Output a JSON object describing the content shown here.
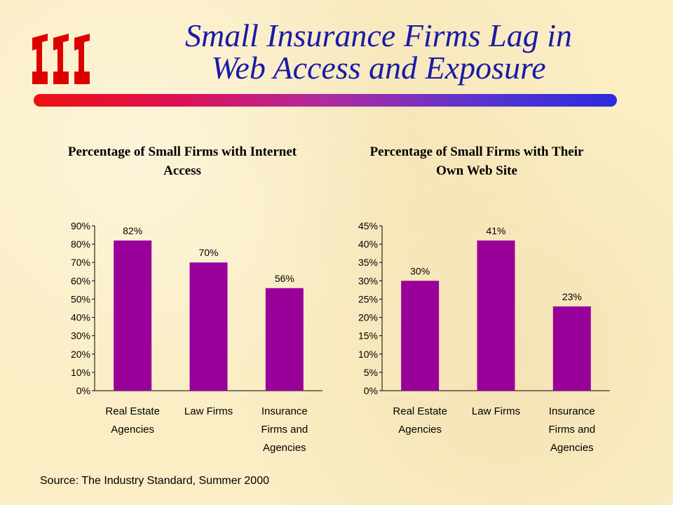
{
  "header": {
    "title_line1": "Small Insurance Firms Lag in",
    "title_line2": "Web Access and Exposure"
  },
  "logo": {
    "name": "iii-logo-icon",
    "color": "#dd0000"
  },
  "chart_data": [
    {
      "type": "bar",
      "title_line1": "Percentage of Small Firms with Internet",
      "title_line2": "Access",
      "categories": [
        [
          "Real Estate",
          "Agencies"
        ],
        [
          "Law Firms"
        ],
        [
          "Insurance",
          "Firms and",
          "Agencies"
        ]
      ],
      "values": [
        82,
        70,
        56
      ],
      "data_labels": [
        "82%",
        "70%",
        "56%"
      ],
      "ylim": [
        0,
        90
      ],
      "yticks": [
        0,
        10,
        20,
        30,
        40,
        50,
        60,
        70,
        80,
        90
      ],
      "ytick_labels": [
        "0%",
        "10%",
        "20%",
        "30%",
        "40%",
        "50%",
        "60%",
        "70%",
        "80%",
        "90%"
      ],
      "bar_color": "#990099",
      "grid": false
    },
    {
      "type": "bar",
      "title_line1": "Percentage of Small Firms with Their",
      "title_line2": "Own Web Site",
      "categories": [
        [
          "Real Estate",
          "Agencies"
        ],
        [
          "Law Firms"
        ],
        [
          "Insurance",
          "Firms and",
          "Agencies"
        ]
      ],
      "values": [
        30,
        41,
        23
      ],
      "data_labels": [
        "30%",
        "41%",
        "23%"
      ],
      "ylim": [
        0,
        45
      ],
      "yticks": [
        0,
        5,
        10,
        15,
        20,
        25,
        30,
        35,
        40,
        45
      ],
      "ytick_labels": [
        "0%",
        "5%",
        "10%",
        "15%",
        "20%",
        "25%",
        "30%",
        "35%",
        "40%",
        "45%"
      ],
      "bar_color": "#990099",
      "grid": false
    }
  ],
  "footer": {
    "source": "Source: The Industry Standard, Summer 2000"
  }
}
